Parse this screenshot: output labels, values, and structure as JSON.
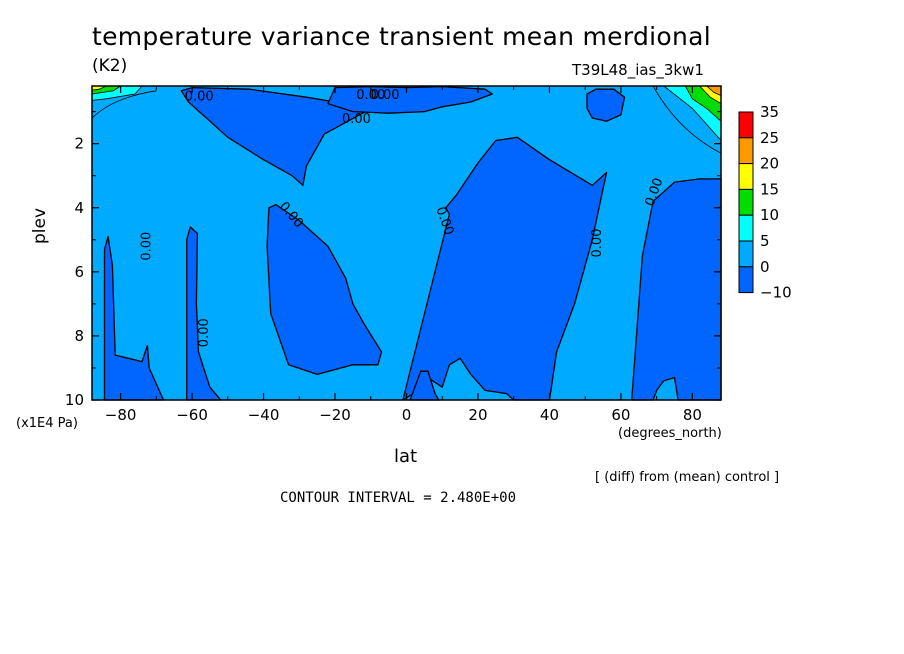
{
  "chart_data": {
    "type": "heatmap",
    "title": "temperature variance transient mean merdional",
    "units": "(K2)",
    "run_label": "T39L48_ias_3kw1",
    "xlabel": "lat",
    "xunits": "(degrees_north)",
    "ylabel": "plev",
    "yunits": "(x1E4 Pa)",
    "note": "[ (diff) from (mean) control ]",
    "contour_interval": "CONTOUR INTERVAL = 2.480E+00",
    "xlim": [
      -88,
      88
    ],
    "ylim": [
      10,
      0.2
    ],
    "x_ticks": [
      -80,
      -60,
      -40,
      -20,
      0,
      20,
      40,
      60,
      80
    ],
    "x_tick_labels": [
      "−80",
      "−60",
      "−40",
      "−20",
      "0",
      "20",
      "40",
      "60",
      "80"
    ],
    "y_ticks": [
      2,
      4,
      6,
      8,
      10
    ],
    "y_tick_labels": [
      "2",
      "4",
      "6",
      "8",
      "10"
    ],
    "colorbar": {
      "levels": [
        "35",
        "25",
        "20",
        "15",
        "10",
        "5",
        "0",
        "−10"
      ],
      "colors": [
        "#ff0000",
        "#ff9900",
        "#ffff00",
        "#00dd00",
        "#00ffff",
        "#00aaff",
        "#0066ff"
      ]
    },
    "background_color": "#00aaff",
    "negative_color": "#0066ff",
    "negative_regions": [
      {
        "name": "sh-polar-column",
        "lat_range": [
          -85,
          -72
        ],
        "plev_range": [
          4.9,
          10
        ]
      },
      {
        "name": "sh-mid-column",
        "lat_range": [
          -62,
          -45
        ],
        "plev_range": [
          4.6,
          10
        ]
      },
      {
        "name": "sh-upper-tongue",
        "lat_range": [
          -64,
          -10
        ],
        "plev_range": [
          0.2,
          3.3
        ]
      },
      {
        "name": "sh-lower-block",
        "lat_range": [
          -39,
          -8
        ],
        "plev_range": [
          3.9,
          9.3
        ]
      },
      {
        "name": "eq-upper-band",
        "lat_range": [
          -20,
          25
        ],
        "plev_range": [
          0.2,
          1.2
        ]
      },
      {
        "name": "nh-central-column",
        "lat_range": [
          0,
          55
        ],
        "plev_range": [
          1.8,
          10
        ]
      },
      {
        "name": "nh-upper-lobe",
        "lat_range": [
          50,
          61
        ],
        "plev_range": [
          0.2,
          1.3
        ]
      },
      {
        "name": "nh-high-column",
        "lat_range": [
          62,
          88
        ],
        "plev_range": [
          3.1,
          10
        ]
      }
    ],
    "contour_labels": [
      "0.00",
      "0.00",
      "0.00",
      "0.00",
      "0.00",
      "0.00",
      "0.00",
      "0.00",
      "0.00",
      "0.00"
    ]
  }
}
